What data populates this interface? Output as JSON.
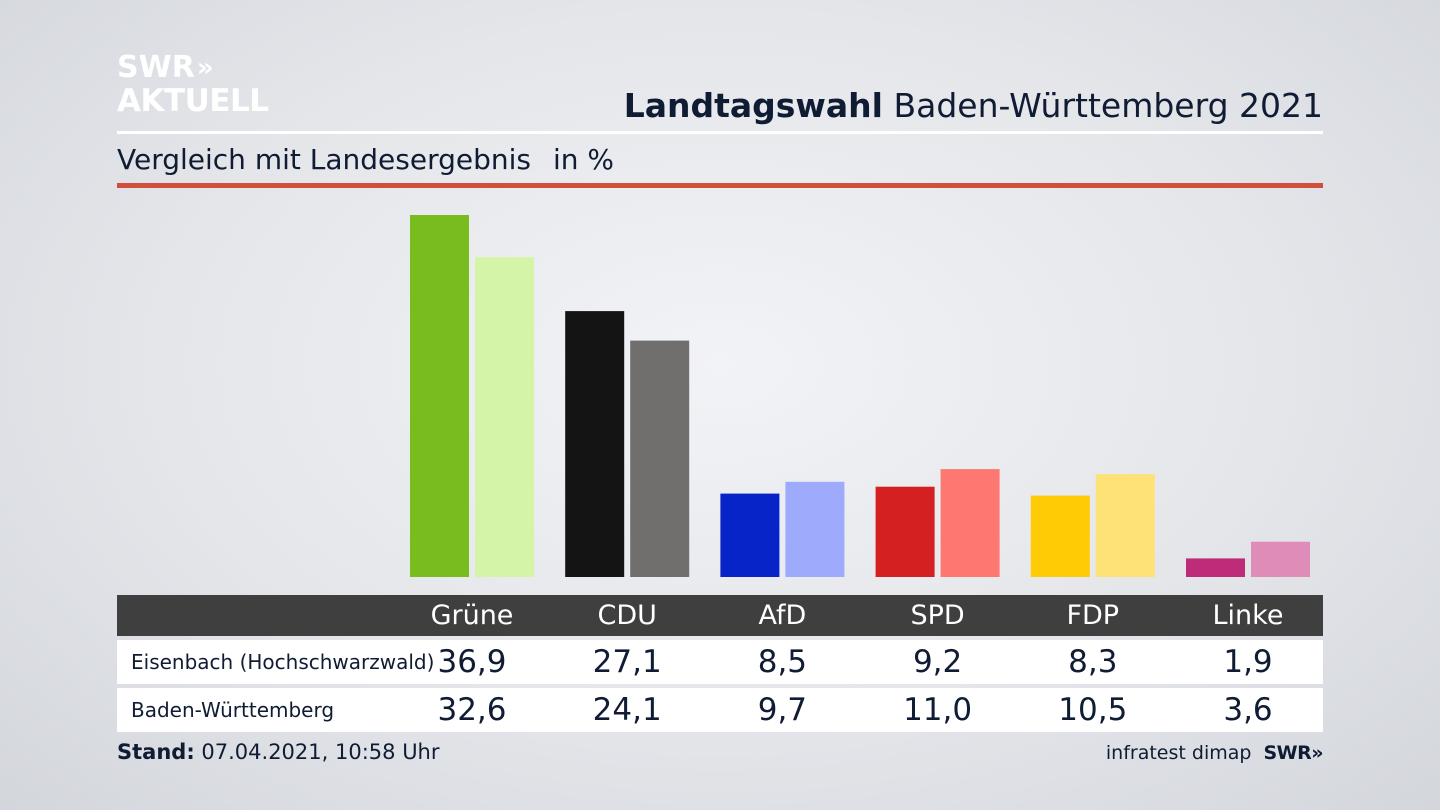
{
  "logo": {
    "line1": "SWR",
    "chevrons": "»",
    "line2": "AKTUELL"
  },
  "header": {
    "title_bold": "Landtagswahl",
    "title_rest": "Baden-Württemberg 2021"
  },
  "subtitle": {
    "text": "Vergleich mit Landesergebnis",
    "unit": "in %"
  },
  "chart_data": {
    "type": "bar",
    "categories": [
      "Grüne",
      "CDU",
      "AfD",
      "SPD",
      "FDP",
      "Linke"
    ],
    "series": [
      {
        "name": "Eisenbach (Hochschwarzwald)",
        "values": [
          "36,9",
          "27,1",
          "8,5",
          "9,2",
          "8,3",
          "1,9"
        ],
        "numeric": [
          36.9,
          27.1,
          8.5,
          9.2,
          8.3,
          1.9
        ]
      },
      {
        "name": "Baden-Württemberg",
        "values": [
          "32,6",
          "24,1",
          "9,7",
          "11,0",
          "10,5",
          "3,6"
        ],
        "numeric": [
          32.6,
          24.1,
          9.7,
          11.0,
          10.5,
          3.6
        ]
      }
    ],
    "colors": {
      "series1": [
        "#78bc1e",
        "#141414",
        "#0624c8",
        "#d42020",
        "#ffcb05",
        "#be2b78"
      ],
      "series2": [
        "#d4f5a8",
        "#706f6d",
        "#9eaafc",
        "#fc7870",
        "#fde278",
        "#df8db8"
      ]
    },
    "ylim": [
      0,
      36.9
    ],
    "grid": false
  },
  "footer": {
    "stand_label": "Stand:",
    "stand_value": "07.04.2021, 10:58 Uhr",
    "source": "infratest dimap",
    "brand": "SWR",
    "brand_chevrons": "»"
  }
}
